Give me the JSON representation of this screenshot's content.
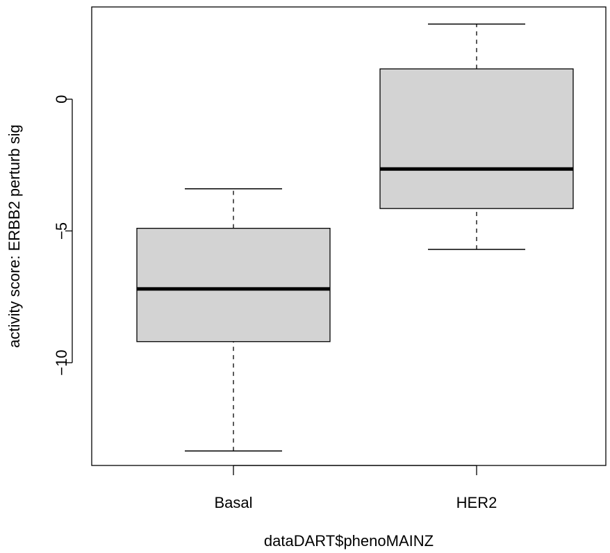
{
  "chart_data": {
    "type": "box",
    "title": "",
    "xlabel": "dataDART$phenoMAINZ",
    "ylabel": "activity score: ERBB2 perturb sig",
    "categories": [
      "Basal",
      "HER2"
    ],
    "boxes": [
      {
        "category": "Basal",
        "whisker_low": -13.35,
        "q1": -9.2,
        "median": -7.2,
        "q3": -4.9,
        "whisker_high": -3.4
      },
      {
        "category": "HER2",
        "whisker_low": -5.7,
        "q1": -4.15,
        "median": -2.65,
        "q3": 1.15,
        "whisker_high": 2.85
      }
    ],
    "ylim": [
      -13.9,
      3.5
    ],
    "yticks": [
      0,
      -5,
      -10
    ],
    "ytick_labels": [
      "0",
      "−5",
      "−10"
    ],
    "box_fill": "#d3d3d3",
    "line_color": "#000000",
    "grid": false,
    "legend": "none"
  }
}
